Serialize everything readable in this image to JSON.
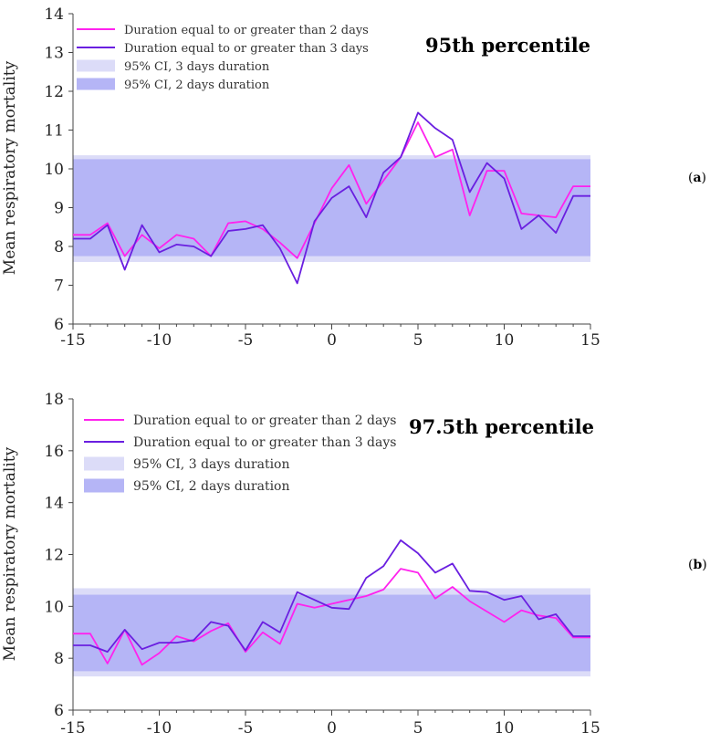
{
  "chart_data": [
    {
      "type": "line",
      "panel_label": "(a)",
      "panel_letter": "a",
      "title": "95th percentile",
      "xlabel": "",
      "ylabel": "Mean respiratory mortality",
      "xlim": [
        -15,
        15
      ],
      "ylim": [
        6,
        14
      ],
      "x_ticks": [
        -15,
        -10,
        -5,
        0,
        5,
        10,
        15
      ],
      "x_tick_labels": [
        "-15",
        "-10",
        "-5",
        "0",
        "5",
        "10",
        "15"
      ],
      "y_ticks": [
        6,
        7,
        8,
        9,
        10,
        11,
        12,
        13,
        14
      ],
      "x": [
        -15,
        -14,
        -13,
        -12,
        -11,
        -10,
        -9,
        -8,
        -7,
        -6,
        -5,
        -4,
        -3,
        -2,
        -1,
        0,
        1,
        2,
        3,
        4,
        5,
        6,
        7,
        8,
        9,
        10,
        11,
        12,
        13,
        14,
        15
      ],
      "series": [
        {
          "name": "Duration equal to or greater than 2 days",
          "color": "#ff22ee",
          "values": [
            8.3,
            8.3,
            8.6,
            7.75,
            8.3,
            7.95,
            8.3,
            8.2,
            7.75,
            8.6,
            8.65,
            8.45,
            8.1,
            7.7,
            8.6,
            9.5,
            10.1,
            9.1,
            9.7,
            10.3,
            11.2,
            10.3,
            10.5,
            8.8,
            9.95,
            9.95,
            8.85,
            8.8,
            8.75,
            9.55,
            9.55
          ]
        },
        {
          "name": "Duration equal to or greater than 3 days",
          "color": "#6a1fe0",
          "values": [
            8.2,
            8.2,
            8.55,
            7.4,
            8.55,
            7.85,
            8.05,
            8.0,
            7.75,
            8.4,
            8.45,
            8.55,
            7.95,
            7.05,
            8.65,
            9.25,
            9.55,
            8.75,
            9.9,
            10.3,
            11.45,
            11.05,
            10.75,
            9.4,
            10.15,
            9.75,
            8.45,
            8.8,
            8.35,
            9.3,
            9.3
          ]
        }
      ],
      "bands": [
        {
          "name": "95% CI, 3 days duration",
          "color": "#dcdcf8",
          "low": 7.6,
          "high": 10.35
        },
        {
          "name": "95% CI, 2 days duration",
          "color": "#b5b5f6",
          "low": 7.75,
          "high": 10.25
        }
      ]
    },
    {
      "type": "line",
      "panel_label": "(b)",
      "panel_letter": "b",
      "title": "97.5th percentile",
      "xlabel": "",
      "ylabel": "Mean respiratory mortality",
      "xlim": [
        -15,
        15
      ],
      "ylim": [
        6,
        18
      ],
      "x_ticks": [
        -15,
        -10,
        -5,
        0,
        5,
        10,
        15
      ],
      "x_tick_labels": [
        "-15",
        "-10",
        "-5",
        "0",
        "5",
        "10",
        "15"
      ],
      "y_ticks": [
        6,
        8,
        10,
        12,
        14,
        16,
        18
      ],
      "x": [
        -15,
        -14,
        -13,
        -12,
        -11,
        -10,
        -9,
        -8,
        -7,
        -6,
        -5,
        -4,
        -3,
        -2,
        -1,
        0,
        1,
        2,
        3,
        4,
        5,
        6,
        7,
        8,
        9,
        10,
        11,
        12,
        13,
        14,
        15
      ],
      "series": [
        {
          "name": "Duration equal to or greater than 2 days",
          "color": "#ff22ee",
          "values": [
            8.95,
            8.95,
            7.8,
            9.1,
            7.75,
            8.2,
            8.85,
            8.65,
            9.05,
            9.35,
            8.25,
            9.0,
            8.55,
            10.1,
            9.95,
            10.1,
            10.25,
            10.4,
            10.65,
            11.45,
            11.3,
            10.3,
            10.75,
            10.2,
            9.8,
            9.4,
            9.85,
            9.65,
            9.55,
            8.8,
            8.8
          ]
        },
        {
          "name": "Duration equal to or greater than 3 days",
          "color": "#6a1fe0",
          "values": [
            8.5,
            8.5,
            8.25,
            9.1,
            8.35,
            8.6,
            8.6,
            8.7,
            9.4,
            9.25,
            8.3,
            9.4,
            9.0,
            10.55,
            10.25,
            9.95,
            9.9,
            11.1,
            11.55,
            12.55,
            12.05,
            11.3,
            11.65,
            10.6,
            10.55,
            10.25,
            10.4,
            9.5,
            9.7,
            8.85,
            8.85
          ]
        }
      ],
      "bands": [
        {
          "name": "95% CI, 3 days duration",
          "color": "#dcdcf8",
          "low": 7.3,
          "high": 10.7
        },
        {
          "name": "95% CI, 2 days duration",
          "color": "#b5b5f6",
          "low": 7.5,
          "high": 10.45
        }
      ]
    }
  ]
}
